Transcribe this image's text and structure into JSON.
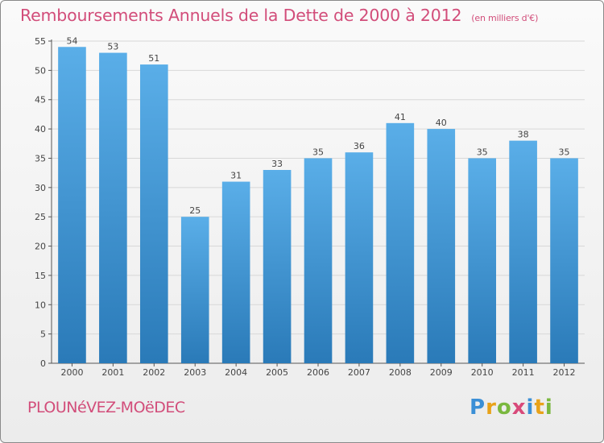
{
  "title": "Remboursements Annuels de la Dette de 2000 à 2012",
  "subtitle": "(en milliers d'€)",
  "commune": "PLOUNéVEZ-MOëDEC",
  "logo_text": "Proxiti",
  "colors": {
    "title": "#d24d7a",
    "bar_light": "#5aaee8",
    "bar_dark": "#2a7ab8",
    "axis": "#555555"
  },
  "chart_data": {
    "type": "bar",
    "title": "Remboursements Annuels de la Dette de 2000 à 2012",
    "subtitle": "(en milliers d'€)",
    "xlabel": "",
    "ylabel": "",
    "categories": [
      "2000",
      "2001",
      "2002",
      "2003",
      "2004",
      "2005",
      "2006",
      "2007",
      "2008",
      "2009",
      "2010",
      "2011",
      "2012"
    ],
    "values": [
      54,
      53,
      51,
      25,
      31,
      33,
      35,
      36,
      41,
      40,
      35,
      38,
      35
    ],
    "ylim": [
      0,
      55
    ],
    "yticks": [
      0,
      5,
      10,
      15,
      20,
      25,
      30,
      35,
      40,
      45,
      50,
      55
    ],
    "grid": true,
    "legend": "none"
  }
}
